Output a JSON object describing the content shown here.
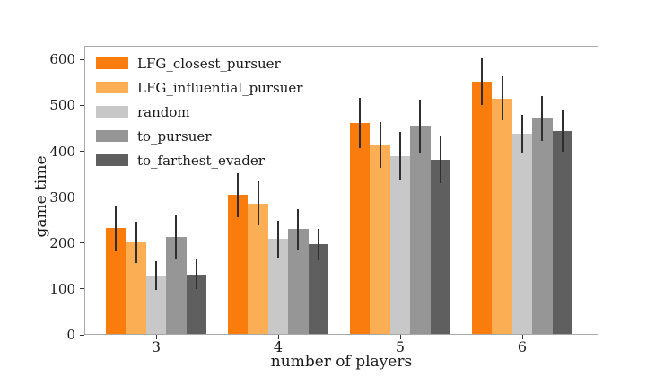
{
  "figure": {
    "background": "#ffffff"
  },
  "chart_data": {
    "type": "bar",
    "title": "",
    "xlabel": "number of players",
    "ylabel": "game time",
    "categories": [
      "3",
      "4",
      "5",
      "6"
    ],
    "series": [
      {
        "name": "LFG_closest_pursuer",
        "color": "#f97c0d",
        "values": [
          232,
          305,
          461,
          551
        ],
        "errors": [
          50,
          48,
          55,
          51
        ]
      },
      {
        "name": "LFG_influential_pursuer",
        "color": "#fcae55",
        "values": [
          202,
          286,
          414,
          515
        ],
        "errors": [
          45,
          48,
          50,
          48
        ]
      },
      {
        "name": "random",
        "color": "#c8c8c8",
        "values": [
          129,
          209,
          390,
          438
        ],
        "errors": [
          31,
          40,
          53,
          42
        ]
      },
      {
        "name": "to_pursuer",
        "color": "#969696",
        "values": [
          214,
          230,
          455,
          472
        ],
        "errors": [
          49,
          44,
          57,
          49
        ]
      },
      {
        "name": "to_farthest_evader",
        "color": "#5f5f5f",
        "values": [
          132,
          197,
          382,
          445
        ],
        "errors": [
          33,
          34,
          52,
          46
        ]
      }
    ],
    "yticks": [
      0,
      100,
      200,
      300,
      400,
      500,
      600
    ],
    "ylim": [
      0,
      630
    ],
    "grid": false,
    "legend_position": "upper left",
    "error_bar_color": "#2e2e2e",
    "axis_color": "#a8a8a8",
    "tick_color": "#333333",
    "text_color": "#1a1a1a"
  }
}
